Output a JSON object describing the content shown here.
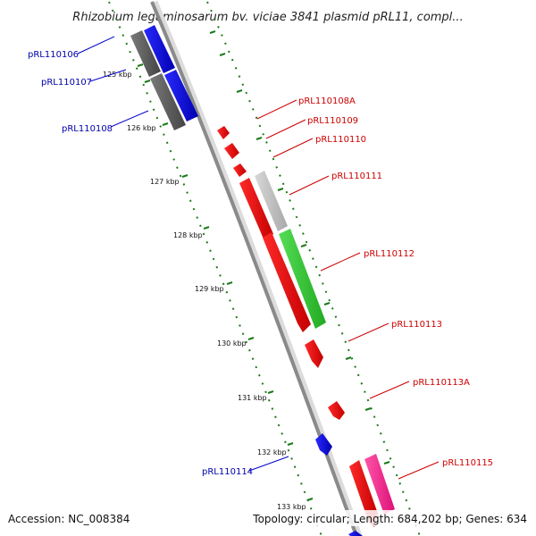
{
  "title": "Rhizobium leguminosarum bv. viciae 3841 plasmid pRL11, compl...",
  "accession": "Accession: NC_008384",
  "topology": "Topology: circular; Length: 684,202 bp; Genes: 634",
  "colors": {
    "backbone": "#8a8a8a",
    "tick": "#1a7a1a",
    "forward_label": "#cc0000",
    "reverse_label": "#0000aa",
    "red": "#ff0000",
    "blue": "#0000ee",
    "gray": "#666666",
    "light_gray": "#bdbdbd",
    "green": "#33cc33",
    "pink": "#ff3399"
  },
  "kbp_labels": [
    "125 kbp",
    "126 kbp",
    "127 kbp",
    "128 kbp",
    "129 kbp",
    "130 kbp",
    "131 kbp",
    "132 kbp",
    "133 kbp"
  ],
  "gene_labels": [
    {
      "id": "pRL110106",
      "strand": "reverse"
    },
    {
      "id": "pRL110107",
      "strand": "reverse"
    },
    {
      "id": "pRL110108",
      "strand": "reverse"
    },
    {
      "id": "pRL110108A",
      "strand": "forward"
    },
    {
      "id": "pRL110109",
      "strand": "forward"
    },
    {
      "id": "pRL110110",
      "strand": "forward"
    },
    {
      "id": "pRL110111",
      "strand": "forward"
    },
    {
      "id": "pRL110112",
      "strand": "forward"
    },
    {
      "id": "pRL110113",
      "strand": "forward"
    },
    {
      "id": "pRL110113A",
      "strand": "forward"
    },
    {
      "id": "pRL110114",
      "strand": "reverse"
    },
    {
      "id": "pRL110115",
      "strand": "forward"
    }
  ]
}
